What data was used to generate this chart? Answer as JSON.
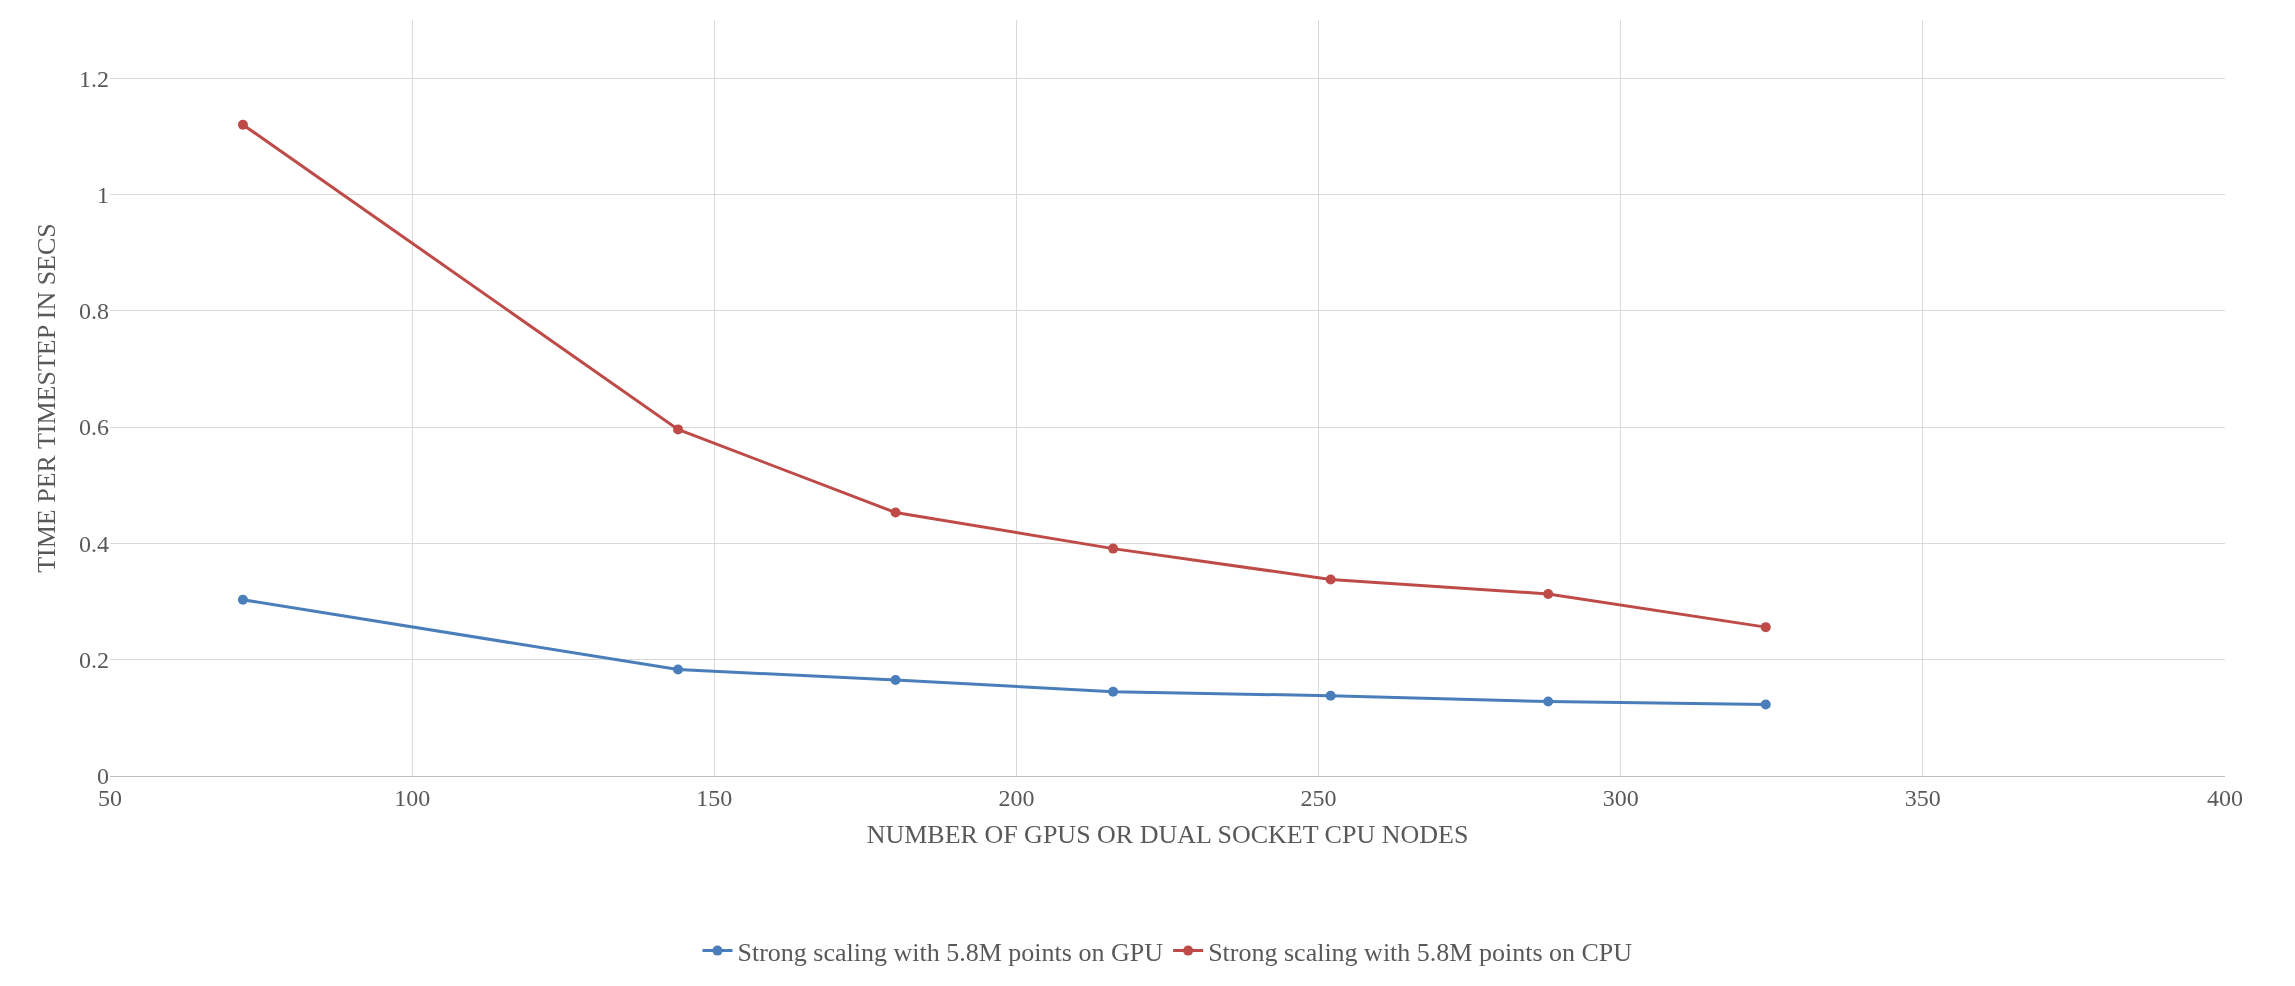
{
  "chart_data": {
    "type": "line",
    "xlabel": "NUMBER OF GPUS OR DUAL SOCKET CPU NODES",
    "ylabel": "TIME PER TIMESTEP IN SECS",
    "x": [
      72,
      144,
      180,
      216,
      252,
      288,
      324
    ],
    "series": [
      {
        "name": "Strong scaling with 5.8M points on GPU",
        "color": "#4a7ebb",
        "values": [
          0.303,
          0.183,
          0.165,
          0.145,
          0.138,
          0.128,
          0.123
        ]
      },
      {
        "name": "Strong scaling with 5.8M points on CPU",
        "color": "#be4b48",
        "values": [
          1.12,
          0.596,
          0.453,
          0.391,
          0.338,
          0.313,
          0.256
        ]
      }
    ],
    "xlim": [
      50,
      400
    ],
    "xticks": [
      50,
      100,
      150,
      200,
      250,
      300,
      350,
      400
    ],
    "ylim": [
      0,
      1.3
    ],
    "yticks": [
      0,
      0.2,
      0.4,
      0.6,
      0.8,
      1,
      1.2
    ],
    "grid": true,
    "legend": "bottom",
    "marker": "circle",
    "line_style": "solid"
  }
}
